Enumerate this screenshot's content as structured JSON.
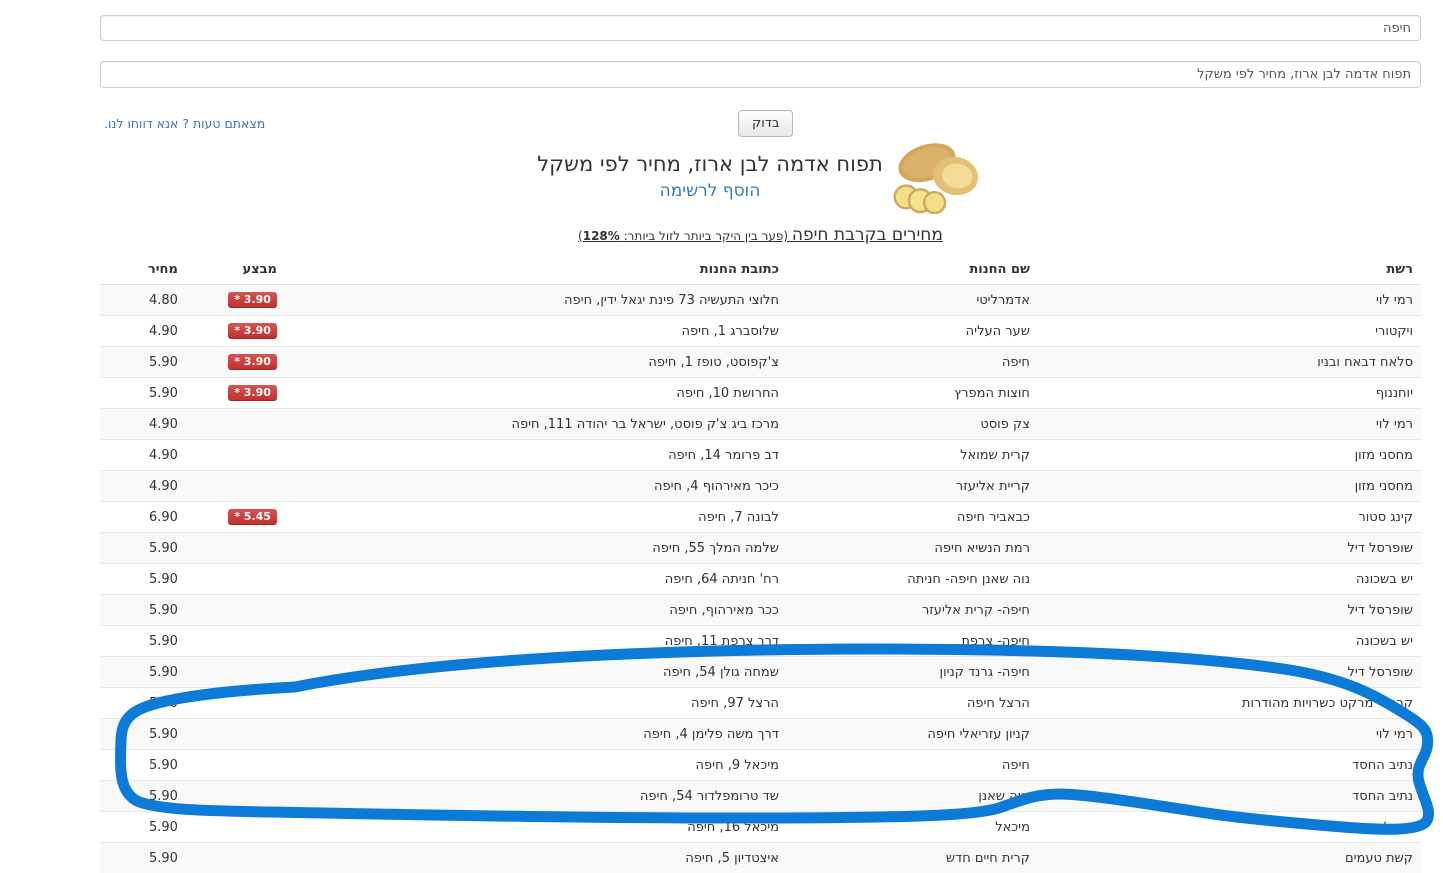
{
  "search": {
    "city_value": "חיפה",
    "product_value": "תפוח אדמה לבן ארוז, מחיר לפי משקל",
    "check_button_label": "בדוק",
    "report_link_label": "מצאתם טעות ? אנא דווחו לנו."
  },
  "product": {
    "title": "תפוח אדמה לבן ארוז, מחיר לפי משקל",
    "add_to_list_label": "הוסף לרשימה"
  },
  "results": {
    "heading_main": "מחירים בקרבת חיפה",
    "gap_note_prefix": " (פער בין היקר ביותר לזול ביותר: ",
    "gap_value": "128%",
    "gap_note_suffix": ")"
  },
  "table": {
    "headers": {
      "network": "רשת",
      "store": "שם החנות",
      "address": "כתובת החנות",
      "sale": "מבצע",
      "price": "מחיר"
    },
    "rows": [
      {
        "network": "רמי לוי",
        "store": "אדמרליטי",
        "address": "חלוצי התעשיה 73 פינת יגאל ידין, חיפה",
        "sale": "* 3.90",
        "price": "4.80"
      },
      {
        "network": "ויקטורי",
        "store": "שער העליה",
        "address": "שלוסברג 1, חיפה",
        "sale": "* 3.90",
        "price": "4.90"
      },
      {
        "network": "סלאח דבאח ובניו",
        "store": "חיפה",
        "address": "צ'קפוסט, טופז 1, חיפה",
        "sale": "* 3.90",
        "price": "5.90"
      },
      {
        "network": "יוחננוף",
        "store": "חוצות המפרץ",
        "address": "החרושת 10, חיפה",
        "sale": "* 3.90",
        "price": "5.90"
      },
      {
        "network": "רמי לוי",
        "store": "צק פוסט",
        "address": "מרכז ביג צ'ק פוסט, ישראל בר יהודה 111, חיפה",
        "sale": "",
        "price": "4.90"
      },
      {
        "network": "מחסני מזון",
        "store": "קרית שמואל",
        "address": "דב פרומר 14, חיפה",
        "sale": "",
        "price": "4.90"
      },
      {
        "network": "מחסני מזון",
        "store": "קריית אליעזר",
        "address": "כיכר מאירהוף 4, חיפה",
        "sale": "",
        "price": "4.90"
      },
      {
        "network": "קינג סטור",
        "store": "כבאביר חיפה",
        "address": "לבונה 7, חיפה",
        "sale": "* 5.45",
        "price": "6.90"
      },
      {
        "network": "שופרסל דיל",
        "store": "רמת הנשיא חיפה",
        "address": "שלמה המלך 55, חיפה",
        "sale": "",
        "price": "5.90"
      },
      {
        "network": "יש בשכונה",
        "store": "נוה שאנן חיפה- חניתה",
        "address": "רח' חניתה 64, חיפה",
        "sale": "",
        "price": "5.90"
      },
      {
        "network": "שופרסל דיל",
        "store": "חיפה- קרית אליעזר",
        "address": "ככר מאירהוף, חיפה",
        "sale": "",
        "price": "5.90"
      },
      {
        "network": "יש בשכונה",
        "store": "חיפה- צרפת",
        "address": "דרך צרפת 11, חיפה",
        "sale": "",
        "price": "5.90"
      },
      {
        "network": "שופרסל דיל",
        "store": "חיפה- גרנד קניון",
        "address": "שמחה גולן 54, חיפה",
        "sale": "",
        "price": "5.90"
      },
      {
        "network": "קרפור מרקט כשרויות מהודרות",
        "store": "הרצל חיפה",
        "address": "הרצל 97, חיפה",
        "sale": "",
        "price": "5.90"
      },
      {
        "network": "רמי לוי",
        "store": "קניון עזריאלי חיפה",
        "address": "דרך משה פלימן 4, חיפה",
        "sale": "",
        "price": "5.90"
      },
      {
        "network": "נתיב החסד",
        "store": "חיפה",
        "address": "מיכאל 9, חיפה",
        "sale": "",
        "price": "5.90"
      },
      {
        "network": "נתיב החסד",
        "store": "נווה שאנן",
        "address": "שד טרומפלדור 54, חיפה",
        "sale": "",
        "price": "5.90"
      },
      {
        "network": "ברכל",
        "store": "מיכאל",
        "address": "מיכאל 16, חיפה",
        "sale": "",
        "price": "5.90"
      },
      {
        "network": "קשת טעמים",
        "store": "קרית חיים חדש",
        "address": "איצטדיון 5, חיפה",
        "sale": "",
        "price": "5.90"
      }
    ]
  },
  "annotation": {
    "color": "#0c7bd8"
  }
}
